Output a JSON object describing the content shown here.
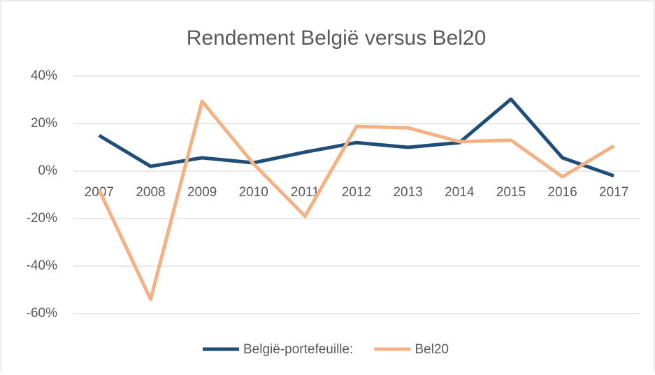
{
  "chart_data": {
    "type": "line",
    "title": "Rendement België versus Bel20",
    "categories": [
      "2007",
      "2008",
      "2009",
      "2010",
      "2011",
      "2012",
      "2013",
      "2014",
      "2015",
      "2016",
      "2017"
    ],
    "series": [
      {
        "name": "België-portefeuille:",
        "color": "#1f4e79",
        "values": [
          15,
          2,
          5.6,
          3.5,
          8,
          12,
          10,
          12,
          30.3,
          5.6,
          -2
        ]
      },
      {
        "name": "Bel20",
        "color": "#f4b183",
        "values": [
          -8,
          -54,
          29.4,
          3,
          -19,
          18.8,
          18.2,
          12.4,
          13,
          -2.4,
          10.6
        ]
      }
    ],
    "ylim": [
      -60,
      40
    ],
    "yticks": [
      {
        "value": -60,
        "label": "-60%"
      },
      {
        "value": -40,
        "label": "-40%"
      },
      {
        "value": -20,
        "label": "-20%"
      },
      {
        "value": 0,
        "label": "0%"
      },
      {
        "value": 20,
        "label": "20%"
      },
      {
        "value": 40,
        "label": "40%"
      }
    ],
    "grid": true
  }
}
